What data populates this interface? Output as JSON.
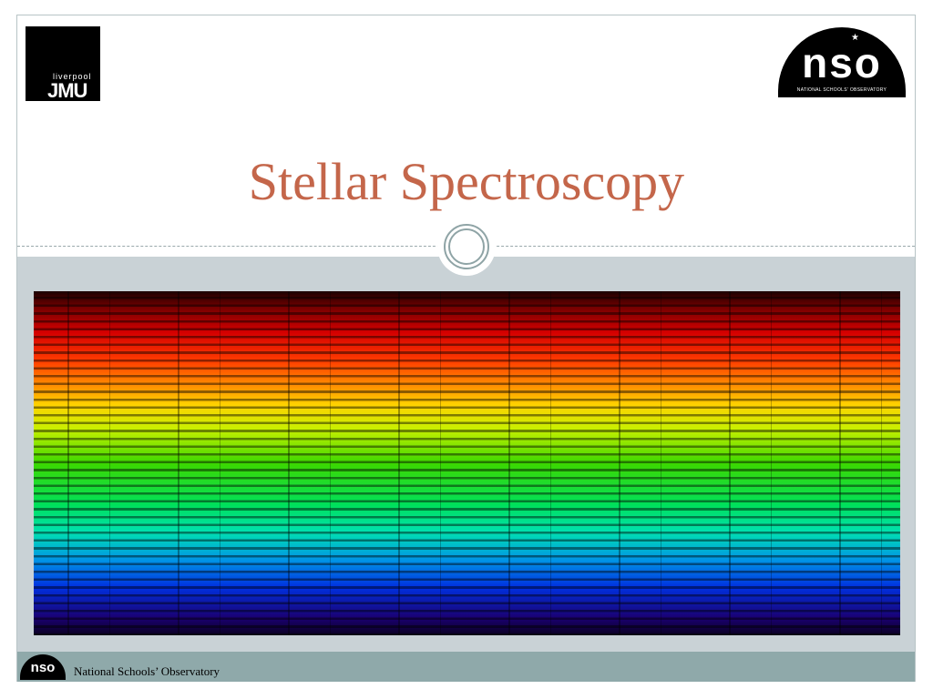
{
  "header": {
    "left_logo": {
      "small": "liverpool",
      "large": "JMU"
    },
    "right_logo": {
      "name": "nso",
      "subtitle": "NATIONAL SCHOOLS' OBSERVATORY"
    }
  },
  "title": "Stellar Spectroscopy",
  "footer": {
    "logo": "nso",
    "text": "National Schools’ Observatory"
  }
}
